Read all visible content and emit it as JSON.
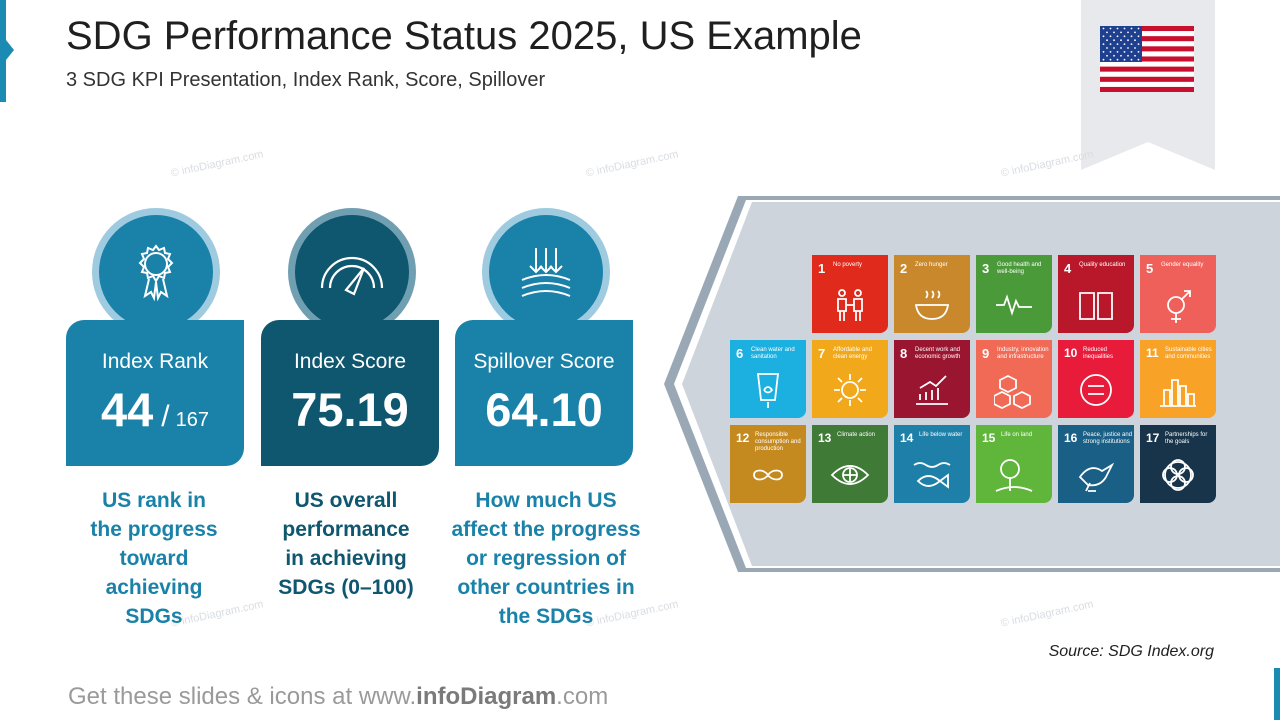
{
  "header": {
    "title": "SDG Performance Status 2025, US Example",
    "subtitle": "3 SDG KPI Presentation, Index Rank, Score, Spillover"
  },
  "watermark": "© infoDiagram.com",
  "cards": [
    {
      "label": "Index Rank",
      "value": "44",
      "slash": "/",
      "total": "167",
      "description": [
        "US rank in",
        "the progress",
        "toward",
        "achieving",
        "SDGs"
      ],
      "icon": "award-ribbon-icon",
      "color": "#1a82a9"
    },
    {
      "label": "Index Score",
      "value": "75.19",
      "description": [
        "US overall",
        "performance",
        "in achieving",
        "SDGs   (0–100)"
      ],
      "icon": "speedometer-gauge-icon",
      "color": "#0f566f"
    },
    {
      "label": "Spillover Score",
      "value": "64.10",
      "description": [
        "How much US",
        "affect the progress",
        "or regression of",
        "other countries in",
        "the SDGs"
      ],
      "icon": "downward-arrows-icon",
      "color": "#1a82a9"
    }
  ],
  "sdg_goals": [
    {
      "num": "1",
      "name": "No poverty",
      "color": "#e5243b",
      "icon": "family-icon"
    },
    {
      "num": "2",
      "name": "Zero hunger",
      "color": "#dda63a",
      "icon": "bowl-icon"
    },
    {
      "num": "3",
      "name": "Good health and well-being",
      "color": "#4c9f38",
      "icon": "heartbeat-icon"
    },
    {
      "num": "4",
      "name": "Quality education",
      "color": "#c5192d",
      "icon": "book-icon"
    },
    {
      "num": "5",
      "name": "Gender equality",
      "color": "#ff3a21",
      "icon": "gender-symbol-icon"
    },
    {
      "num": "6",
      "name": "Clean water and sanitation",
      "color": "#26bde2",
      "icon": "water-glass-icon"
    },
    {
      "num": "7",
      "name": "Affordable and clean energy",
      "color": "#fcc30b",
      "icon": "sun-icon"
    },
    {
      "num": "8",
      "name": "Decent work and economic growth",
      "color": "#a21942",
      "icon": "growth-chart-icon"
    },
    {
      "num": "9",
      "name": "Industry, innovation and infrastructure",
      "color": "#fd6925",
      "icon": "cubes-icon"
    },
    {
      "num": "10",
      "name": "Reduced inequalities",
      "color": "#dd1367",
      "icon": "equals-circle-icon"
    },
    {
      "num": "11",
      "name": "Sustainable cities and communities",
      "color": "#fd9d24",
      "icon": "city-icon"
    },
    {
      "num": "12",
      "name": "Responsible consumption and production",
      "color": "#bf8b2e",
      "icon": "infinity-icon"
    },
    {
      "num": "13",
      "name": "Climate action",
      "color": "#3f7e44",
      "icon": "eye-globe-icon"
    },
    {
      "num": "14",
      "name": "Life below water",
      "color": "#0a97d9",
      "icon": "fish-icon"
    },
    {
      "num": "15",
      "name": "Life on land",
      "color": "#56c02b",
      "icon": "tree-icon"
    },
    {
      "num": "16",
      "name": "Peace, justice and strong institutions",
      "color": "#00689d",
      "icon": "dove-icon"
    },
    {
      "num": "17",
      "name": "Partnerships for the goals",
      "color": "#19486a",
      "icon": "rings-icon"
    }
  ],
  "source": "Source: SDG Index.org",
  "footer": {
    "prefix": "Get these slides & icons at www.",
    "brand": "infoDiagram",
    "suffix": ".com"
  },
  "colors": {
    "accent": "#1a82a9",
    "dark": "#0f566f",
    "panel": "#cdd4dc"
  },
  "flag": "us-flag-icon"
}
